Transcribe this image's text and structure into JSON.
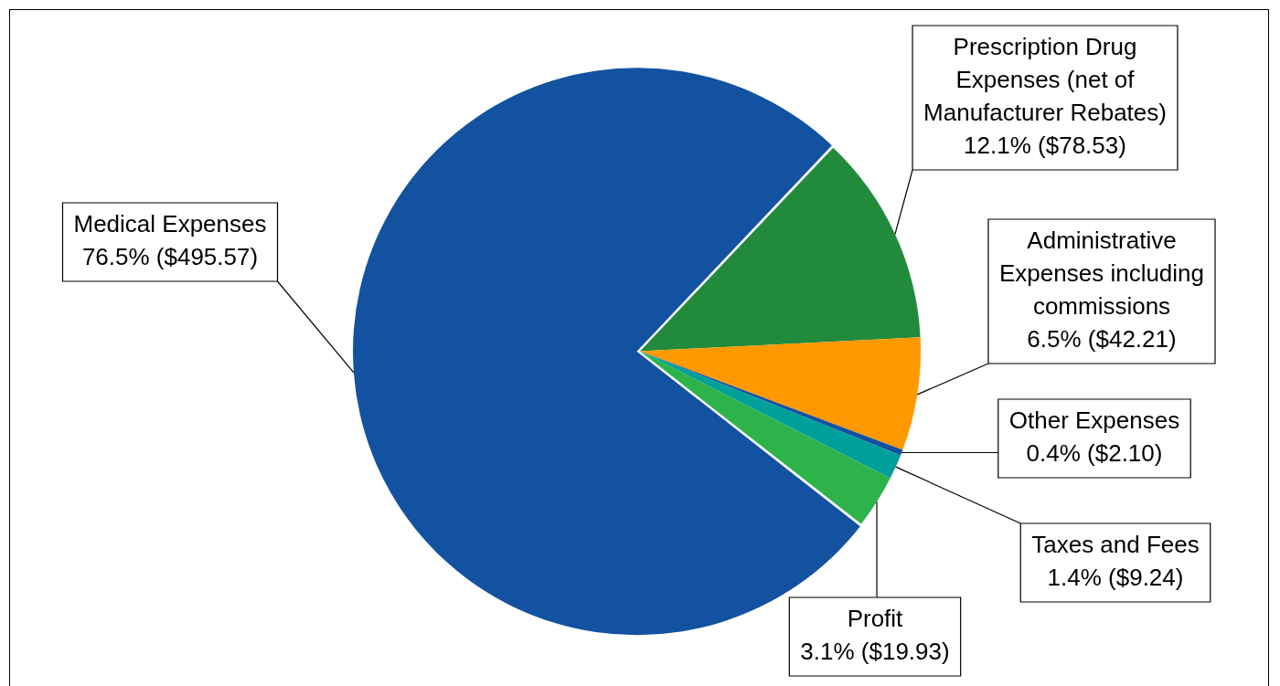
{
  "chart_data": {
    "type": "pie",
    "categories": [
      "Medical Expenses",
      "Prescription Drug Expenses (net of Manufacturer Rebates)",
      "Administrative Expenses including commissions",
      "Other Expenses",
      "Taxes and Fees",
      "Profit"
    ],
    "values": [
      495.57,
      78.53,
      42.21,
      2.1,
      9.24,
      19.93
    ],
    "value_labels": [
      "76.5% ($495.57)",
      "12.1% ($78.53)",
      "6.5% ($42.21)",
      "0.4% ($2.10)",
      "1.4% ($9.24)",
      "3.1% ($19.93)"
    ],
    "colors": [
      "#1352a0",
      "#228b3b",
      "#ff9900",
      "#1352a0",
      "#00a09a",
      "#2db34a"
    ]
  }
}
